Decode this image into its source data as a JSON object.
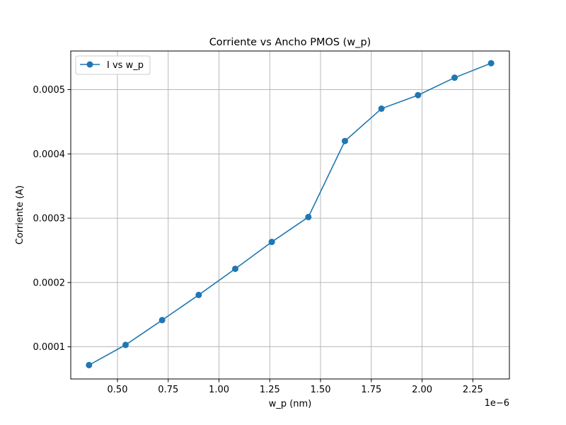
{
  "chart_data": {
    "type": "line",
    "title": "Corriente vs Ancho PMOS (w_p)",
    "xlabel": "w_p (nm)",
    "ylabel": "Corriente (A)",
    "x_offset_label": "1e−6",
    "xlim": [
      2.7e-07,
      2.43e-06
    ],
    "ylim": [
      5e-05,
      0.00056
    ],
    "xticks": [
      5e-07,
      7.5e-07,
      1e-06,
      1.25e-06,
      1.5e-06,
      1.75e-06,
      2e-06,
      2.25e-06
    ],
    "xtick_labels": [
      "0.50",
      "0.75",
      "1.00",
      "1.25",
      "1.50",
      "1.75",
      "2.00",
      "2.25"
    ],
    "yticks": [
      0.0001,
      0.0002,
      0.0003,
      0.0004,
      0.0005
    ],
    "ytick_labels": [
      "0.0001",
      "0.0002",
      "0.0003",
      "0.0004",
      "0.0005"
    ],
    "grid": true,
    "legend_position": "top-left",
    "series": [
      {
        "name": "I vs w_p",
        "color": "#1f77b4",
        "marker": "circle",
        "x": [
          3.6e-07,
          5.4e-07,
          7.2e-07,
          9e-07,
          1.08e-06,
          1.26e-06,
          1.44e-06,
          1.62e-06,
          1.8e-06,
          1.98e-06,
          2.16e-06,
          2.34e-06
        ],
        "y": [
          7.16e-05,
          0.000103,
          0.0001415,
          0.0001806,
          0.0002213,
          0.0002631,
          0.0003018,
          0.00042,
          0.0004703,
          0.0004913,
          0.0005185,
          0.000541
        ]
      }
    ]
  }
}
